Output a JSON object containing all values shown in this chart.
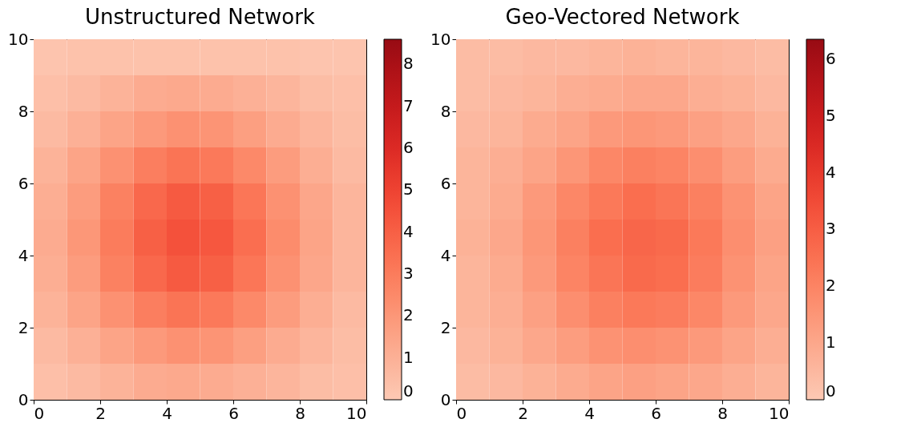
{
  "chart_data": [
    {
      "type": "heatmap",
      "title": "Unstructured Network",
      "x": [
        0.5,
        1.5,
        2.5,
        3.5,
        4.5,
        5.5,
        6.5,
        7.5,
        8.5,
        9.5
      ],
      "y": [
        9.5,
        8.5,
        7.5,
        6.5,
        5.5,
        4.5,
        3.5,
        2.5,
        1.5,
        0.5
      ],
      "xlim": [
        0,
        10
      ],
      "xticks": [
        0,
        2,
        4,
        6,
        8,
        10
      ],
      "ylim": [
        0,
        10
      ],
      "yticks": [
        0,
        2,
        4,
        6,
        8,
        10
      ],
      "clim": [
        0,
        8.6
      ],
      "cticks": [
        0,
        1,
        2,
        3,
        4,
        5,
        6,
        7,
        8
      ],
      "cells": [
        [
          0.2,
          0.3,
          0.3,
          0.3,
          0.3,
          0.3,
          0.3,
          0.3,
          0.2,
          0.2
        ],
        [
          0.4,
          0.6,
          0.9,
          1.2,
          1.3,
          1.2,
          1.0,
          0.8,
          0.5,
          0.4
        ],
        [
          0.6,
          1.0,
          1.5,
          1.9,
          2.2,
          2.1,
          1.7,
          1.2,
          0.8,
          0.5
        ],
        [
          0.9,
          1.5,
          2.2,
          2.9,
          3.3,
          3.1,
          2.5,
          1.8,
          1.1,
          0.6
        ],
        [
          1.1,
          1.8,
          2.8,
          3.7,
          4.2,
          4.0,
          3.2,
          2.2,
          1.4,
          0.8
        ],
        [
          1.2,
          2.0,
          3.0,
          4.0,
          4.5,
          4.3,
          3.5,
          2.4,
          1.5,
          0.8
        ],
        [
          1.1,
          1.8,
          2.8,
          3.7,
          4.2,
          4.0,
          3.2,
          2.2,
          1.4,
          0.8
        ],
        [
          0.9,
          1.5,
          2.2,
          2.9,
          3.3,
          3.1,
          2.5,
          1.8,
          1.1,
          0.6
        ],
        [
          0.6,
          1.0,
          1.5,
          1.9,
          2.2,
          2.1,
          1.7,
          1.2,
          0.8,
          0.5
        ],
        [
          0.4,
          0.6,
          0.9,
          1.2,
          1.3,
          1.2,
          1.0,
          0.8,
          0.5,
          0.4
        ]
      ]
    },
    {
      "type": "heatmap",
      "title": "Geo-Vectored Network",
      "x": [
        0.5,
        1.5,
        2.5,
        3.5,
        4.5,
        5.5,
        6.5,
        7.5,
        8.5,
        9.5
      ],
      "y": [
        9.5,
        8.5,
        7.5,
        6.5,
        5.5,
        4.5,
        3.5,
        2.5,
        1.5,
        0.5
      ],
      "xlim": [
        0,
        10
      ],
      "xticks": [
        0,
        2,
        4,
        6,
        8,
        10
      ],
      "ylim": [
        0,
        10
      ],
      "yticks": [
        0,
        2,
        4,
        6,
        8,
        10
      ],
      "clim": [
        0,
        6.35
      ],
      "cticks": [
        0,
        1,
        2,
        3,
        4,
        5,
        6
      ],
      "cells": [
        [
          0.4,
          0.4,
          0.5,
          0.5,
          0.6,
          0.7,
          0.6,
          0.6,
          0.5,
          0.4
        ],
        [
          0.4,
          0.5,
          0.6,
          0.8,
          0.9,
          1.0,
          1.0,
          0.8,
          0.7,
          0.5
        ],
        [
          0.5,
          0.6,
          0.9,
          1.1,
          1.4,
          1.5,
          1.4,
          1.2,
          1.0,
          0.7
        ],
        [
          0.6,
          0.8,
          1.1,
          1.5,
          1.9,
          2.1,
          2.0,
          1.7,
          1.3,
          0.9
        ],
        [
          0.6,
          0.9,
          1.4,
          1.9,
          2.3,
          2.6,
          2.4,
          2.1,
          1.6,
          1.1
        ],
        [
          0.7,
          1.0,
          1.5,
          2.1,
          2.6,
          2.8,
          2.7,
          2.3,
          1.7,
          1.2
        ],
        [
          0.6,
          0.9,
          1.4,
          2.0,
          2.4,
          2.7,
          2.6,
          2.2,
          1.6,
          1.1
        ],
        [
          0.6,
          0.8,
          1.2,
          1.7,
          2.1,
          2.3,
          2.2,
          1.9,
          1.4,
          1.0
        ],
        [
          0.5,
          0.7,
          1.0,
          1.3,
          1.6,
          1.7,
          1.6,
          1.4,
          1.1,
          0.8
        ],
        [
          0.4,
          0.5,
          0.7,
          0.9,
          1.1,
          1.2,
          1.1,
          1.0,
          0.8,
          0.6
        ]
      ]
    }
  ]
}
